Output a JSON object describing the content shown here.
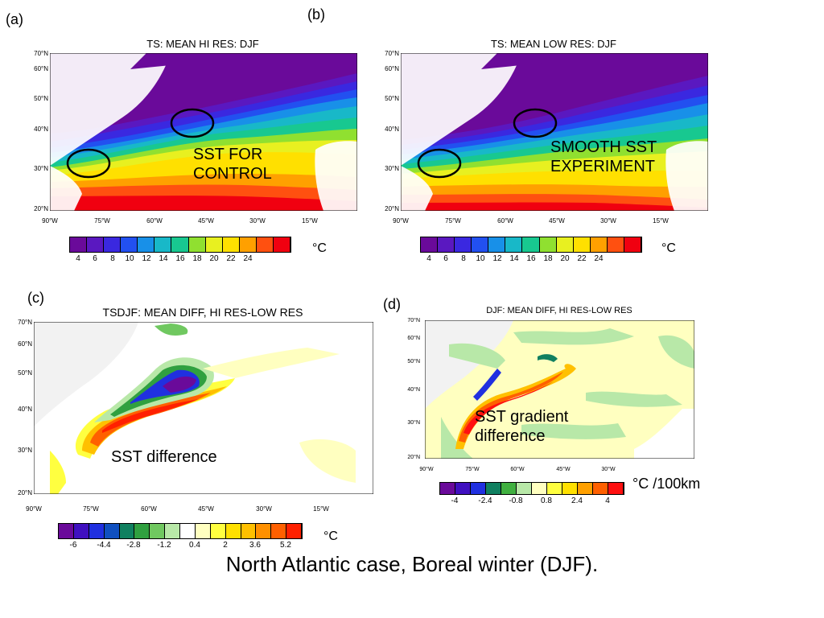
{
  "panels": {
    "a": {
      "letter": "(a)",
      "title": "TS: MEAN HI RES: DJF",
      "overlay_line1": "SST FOR",
      "overlay_line2": "CONTROL"
    },
    "b": {
      "letter": "(b)",
      "title": "TS: MEAN LOW RES: DJF",
      "overlay_line1": "SMOOTH SST",
      "overlay_line2": "EXPERIMENT"
    },
    "c": {
      "letter": "(c)",
      "title": "TSDJF: MEAN DIFF, HI RES-LOW RES",
      "overlay": "SST difference"
    },
    "d": {
      "letter": "(d)",
      "title": "DJF: MEAN DIFF, HI RES-LOW RES",
      "overlay_line1": "SST gradient",
      "overlay_line2": "difference"
    }
  },
  "axes": {
    "lat_labels": [
      "70°N",
      "60°N",
      "50°N",
      "40°N",
      "30°N",
      "20°N"
    ],
    "lon_labels": [
      "90°W",
      "75°W",
      "60°W",
      "45°W",
      "30°W",
      "15°W"
    ],
    "lon_labels_d": [
      "90°W",
      "75°W",
      "60°W",
      "45°W",
      "30°W"
    ]
  },
  "colorbars": {
    "sst": {
      "labels": [
        "4",
        "6",
        "8",
        "10",
        "12",
        "14",
        "16",
        "18",
        "20",
        "22",
        "24"
      ],
      "unit": "°C",
      "colors": [
        "#6a0a9a",
        "#5a18c0",
        "#3a28e0",
        "#2250f0",
        "#1890e8",
        "#18b8c8",
        "#18c890",
        "#90e030",
        "#e8f020",
        "#ffe000",
        "#ffa000",
        "#ff5010",
        "#f00010"
      ]
    },
    "diff": {
      "labels": [
        "-6",
        "-4.4",
        "-2.8",
        "-1.2",
        "0.4",
        "2",
        "3.6",
        "5.2"
      ],
      "unit": "°C",
      "colors": [
        "#6a0a9a",
        "#4010c0",
        "#2030e0",
        "#1050c0",
        "#108060",
        "#30a040",
        "#70c860",
        "#b8e8a8",
        "#ffffff",
        "#ffffc0",
        "#ffff40",
        "#ffe000",
        "#ffc000",
        "#ff9000",
        "#ff6000",
        "#ff2000"
      ]
    },
    "grad": {
      "labels": [
        "-4",
        "-2.4",
        "-0.8",
        "0.8",
        "2.4",
        "4"
      ],
      "unit": "°C /100km",
      "colors": [
        "#6a0a9a",
        "#4010c0",
        "#2030e0",
        "#108060",
        "#40b040",
        "#b8e8a8",
        "#ffffc0",
        "#ffff40",
        "#ffe000",
        "#ffa000",
        "#ff6000",
        "#ff1010"
      ]
    }
  },
  "caption": "North Atlantic case, Boreal winter (DJF)."
}
